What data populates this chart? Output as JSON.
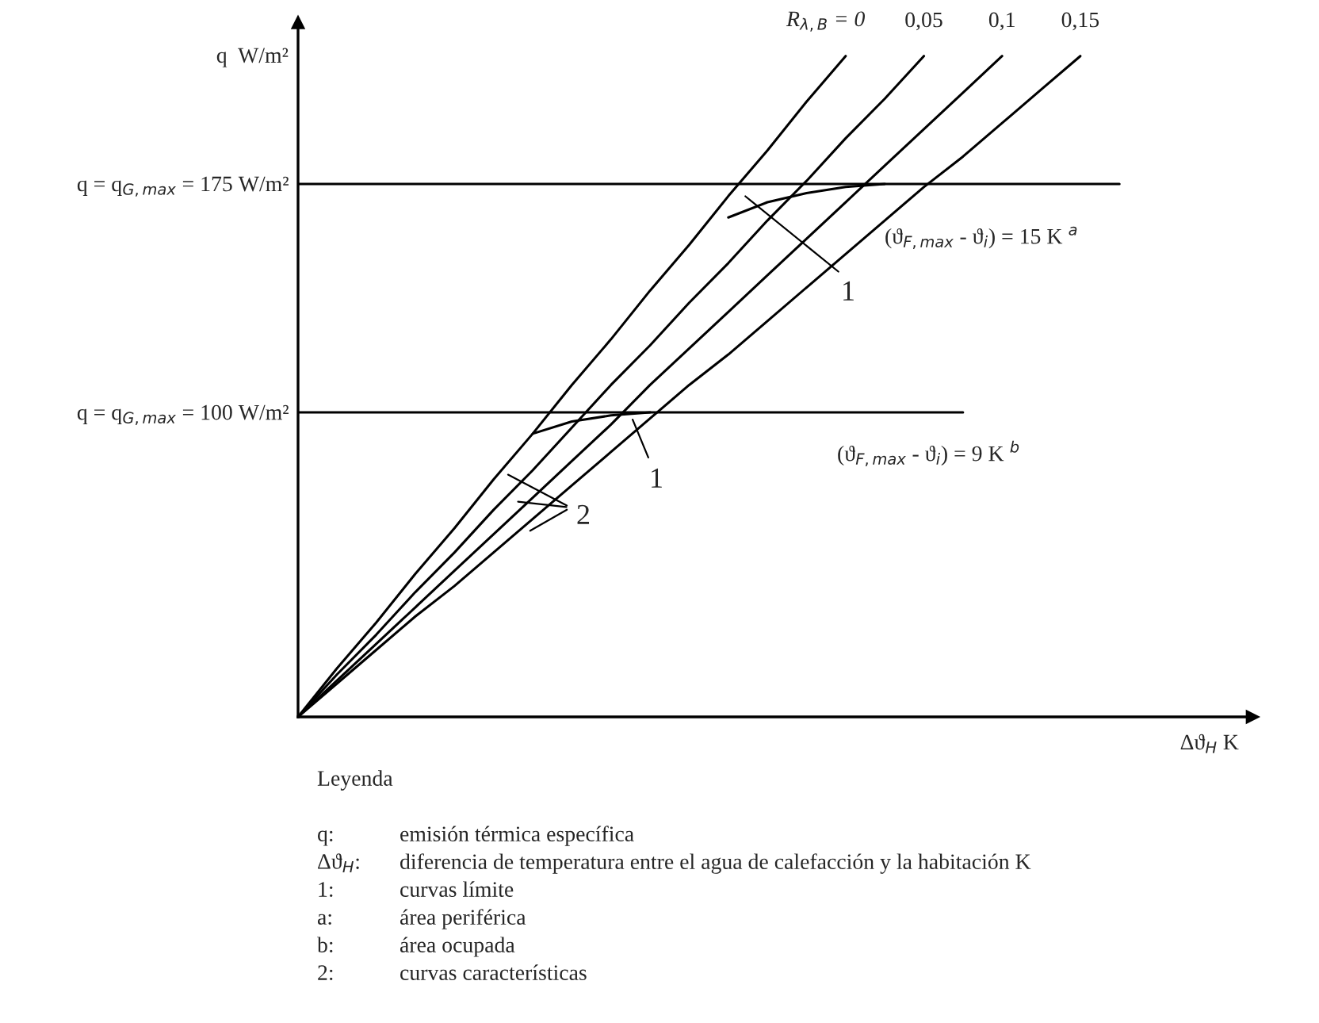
{
  "chart_data": {
    "type": "line",
    "ylabel": "q  W/m²",
    "xlabel": "Δϑ$_{H}$ K",
    "categories": [
      null,
      null,
      null,
      null,
      null,
      null,
      null,
      null,
      null,
      null,
      null,
      null,
      null,
      null,
      null,
      null,
      null,
      null,
      null,
      null,
      null,
      null,
      null,
      null,
      null
    ],
    "series": [
      {
        "name": "R$_{λ,B}$ = 0",
        "color": "#000000",
        "values": [
          0,
          16,
          31,
          47,
          62,
          78,
          93,
          109,
          124,
          140,
          155,
          171,
          186,
          202,
          217,
          null,
          null,
          null,
          null,
          null,
          null,
          null,
          null,
          null,
          null
        ]
      },
      {
        "name": "0,05",
        "color": "#000000",
        "values": [
          0,
          14,
          27,
          41,
          54,
          68,
          81,
          95,
          109,
          122,
          136,
          149,
          163,
          176,
          190,
          203,
          217,
          null,
          null,
          null,
          null,
          null,
          null,
          null,
          null
        ]
      },
      {
        "name": "0,1",
        "color": "#000000",
        "values": [
          0,
          12,
          24,
          36,
          48,
          60,
          72,
          84,
          96,
          109,
          121,
          133,
          145,
          157,
          169,
          181,
          193,
          205,
          217,
          null,
          null,
          null,
          null,
          null,
          null
        ]
      },
      {
        "name": "0,15",
        "color": "#000000",
        "values": [
          0,
          11,
          22,
          33,
          43,
          54,
          65,
          76,
          87,
          98,
          109,
          119,
          130,
          141,
          152,
          163,
          174,
          184,
          195,
          206,
          217,
          null,
          null,
          null,
          null
        ]
      },
      {
        "color": "#000000",
        "values": [
          175,
          175,
          175,
          175,
          175,
          175,
          175,
          175,
          175,
          175,
          175,
          175,
          175,
          175,
          175,
          175,
          175,
          175,
          175,
          175,
          175,
          175,
          null,
          null,
          null
        ]
      },
      {
        "color": "#000000",
        "values": [
          100,
          100,
          100,
          100,
          100,
          100,
          100,
          100,
          100,
          100,
          100,
          100,
          100,
          100,
          100,
          100,
          100,
          100,
          null,
          null,
          null,
          null,
          null,
          null,
          null
        ]
      },
      {
        "color": "#000000",
        "values": [
          null,
          null,
          null,
          null,
          null,
          null,
          null,
          null,
          null,
          null,
          null,
          164,
          169,
          172,
          174,
          175,
          null,
          null,
          null,
          null,
          null,
          null,
          null,
          null,
          null
        ]
      },
      {
        "color": "#000000",
        "values": [
          null,
          null,
          null,
          null,
          null,
          null,
          93,
          97,
          99,
          100,
          null,
          null,
          null,
          null,
          null,
          null,
          null,
          null,
          null,
          null,
          null,
          null,
          null,
          null,
          null
        ]
      }
    ],
    "ylim": [
      0,
      228
    ],
    "yticks": [
      {
        "value": 100,
        "label": "q = q$_{G,max}$ = 100 W/m²"
      },
      {
        "value": 175,
        "label": "q = q$_{G,max}$ = 175 W/m²"
      }
    ],
    "tick_labels": "y",
    "grid": false,
    "legend": false,
    "marker": "none",
    "line_style": "solid",
    "annotations": [
      "1",
      "1",
      "2",
      "(ϑ$_{F,max}$ - ϑ$_{i}$) = 15 K $^{a}$",
      "(ϑ$_{F,max}$ - ϑ$_{i}$) = 9 K $^{b}$",
      "Leyenda",
      "q:\temisión térmica específica",
      "Δϑ$_{H}$:\tdiferencia de temperatura entre el agua de calefacción y la habitación K",
      "1:\tcurvas límite",
      "a:\tárea periférica",
      "b:\tárea ocupada",
      "2:\tcurvas características"
    ]
  }
}
